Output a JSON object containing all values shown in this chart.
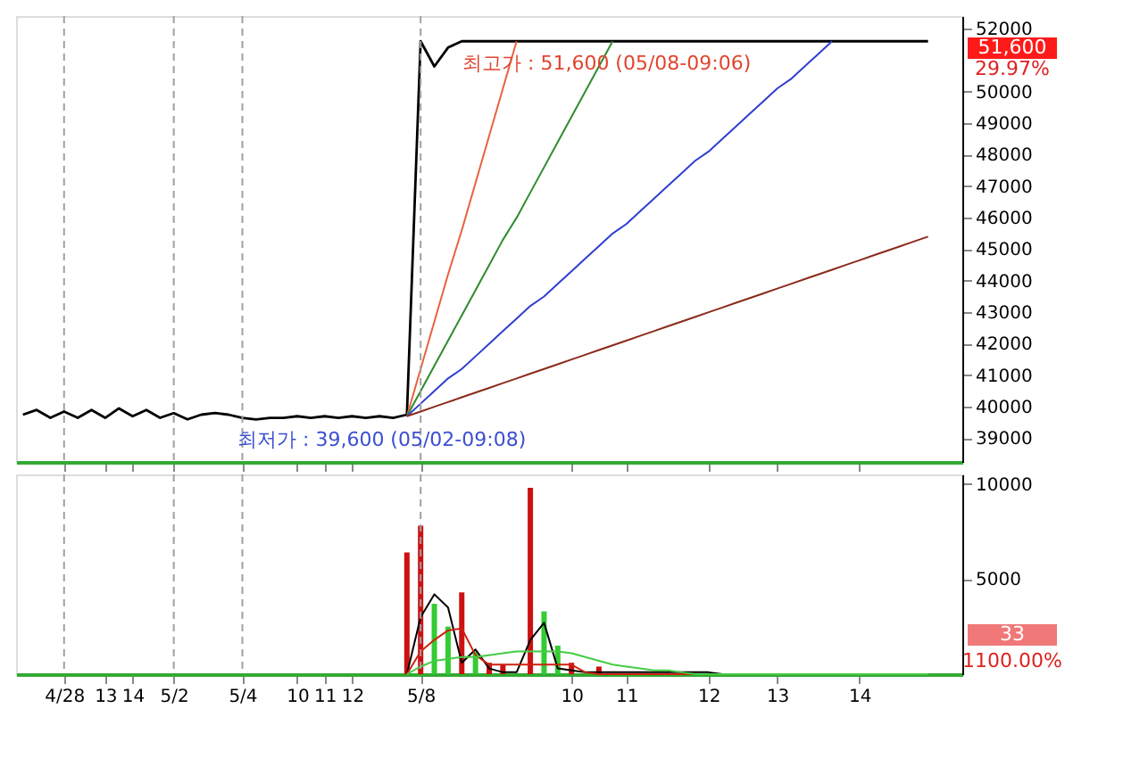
{
  "chart_data": [
    {
      "type": "line",
      "categories": [
        null,
        null,
        null,
        "4/28",
        null,
        null,
        "13",
        null,
        "14",
        null,
        null,
        "5/2",
        null,
        null,
        null,
        null,
        "5/4",
        null,
        null,
        null,
        "10",
        null,
        "11",
        null,
        "12",
        null,
        null,
        null,
        null,
        "5/8",
        null,
        null,
        null,
        null,
        null,
        null,
        null,
        null,
        null,
        null,
        "10",
        null,
        null,
        null,
        "11",
        null,
        null,
        null,
        null,
        null,
        "12",
        null,
        null,
        null,
        null,
        "13",
        null,
        null,
        null,
        null,
        null,
        "14",
        null,
        null,
        null,
        null,
        null,
        null,
        null
      ],
      "ylim": [
        38250,
        52400
      ],
      "yticks": [
        39000,
        40000,
        41000,
        42000,
        43000,
        44000,
        45000,
        46000,
        47000,
        48000,
        49000,
        50000,
        52000
      ],
      "tick_labels": "y",
      "grid": false,
      "marker": "none",
      "line_style": "solid",
      "series": [
        {
          "color": "#000000",
          "values": [
            39750,
            39900,
            39650,
            39850,
            39650,
            39900,
            39650,
            39950,
            39700,
            39900,
            39650,
            39800,
            39600,
            39750,
            39800,
            39750,
            39650,
            39600,
            39650,
            39650,
            39700,
            39650,
            39700,
            39650,
            39700,
            39650,
            39700,
            39650,
            39750,
            51600,
            50800,
            51400,
            51600,
            51600,
            51600,
            51600,
            51600,
            51600,
            51600,
            51600,
            51600,
            51600,
            51600,
            51600,
            51600,
            51600,
            51600,
            51600,
            51600,
            51600,
            51600,
            51600,
            51600,
            51600,
            51600,
            51600,
            51600,
            51600,
            51600,
            51600,
            51600,
            51600,
            51600,
            51600,
            51600,
            51600,
            51600,
            null,
            null
          ]
        },
        {
          "color": "#e8623c",
          "values": [
            null,
            null,
            null,
            null,
            null,
            null,
            null,
            null,
            null,
            null,
            null,
            null,
            null,
            null,
            null,
            null,
            null,
            null,
            null,
            null,
            null,
            null,
            null,
            null,
            null,
            null,
            null,
            null,
            39700,
            41200,
            42700,
            44200,
            45600,
            47100,
            48600,
            50100,
            51600,
            null,
            null,
            null,
            null,
            null,
            null,
            null,
            null,
            null,
            null,
            null,
            null,
            null,
            null,
            null,
            null,
            null,
            null,
            null,
            null,
            null,
            null,
            null,
            null,
            null,
            null,
            null,
            null,
            null,
            null,
            null,
            null
          ]
        },
        {
          "color": "#2e8b2e",
          "values": [
            null,
            null,
            null,
            null,
            null,
            null,
            null,
            null,
            null,
            null,
            null,
            null,
            null,
            null,
            null,
            null,
            null,
            null,
            null,
            null,
            null,
            null,
            null,
            null,
            null,
            null,
            null,
            null,
            39700,
            40500,
            41300,
            42100,
            42900,
            43700,
            44500,
            45300,
            46000,
            46800,
            47600,
            48400,
            49200,
            50000,
            50800,
            51600,
            null,
            null,
            null,
            null,
            null,
            null,
            null,
            null,
            null,
            null,
            null,
            null,
            null,
            null,
            null,
            null,
            null,
            null,
            null,
            null,
            null,
            null,
            null,
            null,
            null
          ]
        },
        {
          "color": "#2f3fd0",
          "values": [
            null,
            null,
            null,
            null,
            null,
            null,
            null,
            null,
            null,
            null,
            null,
            null,
            null,
            null,
            null,
            null,
            null,
            null,
            null,
            null,
            null,
            null,
            null,
            null,
            null,
            null,
            null,
            null,
            39700,
            40100,
            40500,
            40900,
            41200,
            41600,
            42000,
            42400,
            42800,
            43200,
            43500,
            43900,
            44300,
            44700,
            45100,
            45500,
            45800,
            46200,
            46600,
            47000,
            47400,
            47800,
            48100,
            48500,
            48900,
            49300,
            49700,
            50100,
            50400,
            50800,
            51200,
            51600,
            null,
            null,
            null,
            null,
            null,
            null,
            null,
            null,
            null
          ]
        },
        {
          "color": "#8b2a1a",
          "values": [
            null,
            null,
            null,
            null,
            null,
            null,
            null,
            null,
            null,
            null,
            null,
            null,
            null,
            null,
            null,
            null,
            null,
            null,
            null,
            null,
            null,
            null,
            null,
            null,
            null,
            null,
            null,
            null,
            39700,
            39850,
            40000,
            40150,
            40300,
            40450,
            40600,
            40750,
            40900,
            41050,
            41200,
            41350,
            41500,
            41650,
            41800,
            41950,
            42100,
            42250,
            42400,
            42550,
            42700,
            42850,
            43000,
            43150,
            43300,
            43450,
            43600,
            43750,
            43900,
            44050,
            44200,
            44350,
            44500,
            44650,
            44800,
            44950,
            45100,
            45250,
            45400,
            null,
            null
          ]
        }
      ],
      "ref_lines": [
        {
          "axis": "x",
          "value": "4/28",
          "color": "#a0a0a0",
          "line_style": "dashed"
        },
        {
          "axis": "x",
          "value": "5/2",
          "color": "#a0a0a0",
          "line_style": "dashed"
        },
        {
          "axis": "x",
          "value": "5/4",
          "color": "#a0a0a0",
          "line_style": "dashed"
        },
        {
          "axis": "x",
          "value": "5/8",
          "color": "#a0a0a0",
          "line_style": "dashed"
        }
      ],
      "annotations": [
        "최고가 : 51,600 (05/08-09:06)",
        "최저가 : 39,600 (05/02-09:08)",
        "51,600",
        "29.97%"
      ]
    },
    {
      "type": "bar",
      "categories": [
        null,
        null,
        null,
        "4/28",
        null,
        null,
        "13",
        null,
        "14",
        null,
        null,
        "5/2",
        null,
        null,
        null,
        null,
        "5/4",
        null,
        null,
        null,
        "10",
        null,
        "11",
        null,
        "12",
        null,
        null,
        null,
        null,
        "5/8",
        null,
        null,
        null,
        null,
        null,
        null,
        null,
        null,
        null,
        null,
        "10",
        null,
        null,
        null,
        "11",
        null,
        null,
        null,
        null,
        null,
        "12",
        null,
        null,
        null,
        null,
        "13",
        null,
        null,
        null,
        null,
        null,
        "14",
        null,
        null,
        null,
        null,
        null,
        null,
        null
      ],
      "ylim": [
        0,
        10500
      ],
      "yticks": [
        5000,
        10000
      ],
      "grid": false,
      "marker": "none",
      "line_style": "solid",
      "series": [
        {
          "type": "bar",
          "color": "#cc1111",
          "values": [
            null,
            null,
            null,
            null,
            null,
            null,
            null,
            null,
            null,
            null,
            null,
            null,
            null,
            null,
            null,
            null,
            null,
            null,
            null,
            null,
            null,
            null,
            null,
            null,
            null,
            null,
            null,
            null,
            6400,
            7800,
            null,
            null,
            4300,
            null,
            600,
            500,
            null,
            9800,
            null,
            null,
            600,
            null,
            400,
            null,
            null,
            null,
            null,
            null,
            null,
            null,
            null,
            null,
            null,
            null,
            null,
            null,
            null,
            null,
            null,
            null,
            null,
            null,
            null,
            null,
            null,
            null,
            null,
            null,
            null
          ]
        },
        {
          "type": "bar",
          "color": "#33cc33",
          "values": [
            null,
            null,
            null,
            null,
            null,
            null,
            null,
            null,
            null,
            null,
            null,
            null,
            null,
            null,
            null,
            null,
            null,
            null,
            null,
            null,
            null,
            null,
            null,
            null,
            null,
            null,
            null,
            null,
            null,
            null,
            3700,
            2500,
            null,
            1200,
            null,
            null,
            null,
            null,
            3300,
            1500,
            null,
            null,
            null,
            null,
            null,
            null,
            null,
            null,
            null,
            null,
            null,
            null,
            null,
            null,
            null,
            null,
            null,
            null,
            null,
            null,
            null,
            null,
            null,
            null,
            null,
            null,
            null,
            null,
            null
          ]
        },
        {
          "type": "line",
          "color": "#000000",
          "values": [
            null,
            null,
            null,
            null,
            null,
            null,
            null,
            null,
            null,
            null,
            null,
            null,
            null,
            null,
            null,
            null,
            null,
            null,
            null,
            null,
            null,
            null,
            null,
            null,
            null,
            null,
            null,
            null,
            0,
            3000,
            4200,
            3500,
            600,
            1300,
            300,
            100,
            100,
            1800,
            2700,
            300,
            200,
            100,
            100,
            100,
            100,
            100,
            100,
            100,
            100,
            100,
            100,
            0,
            0,
            0,
            0,
            0,
            0,
            0,
            0,
            0,
            0,
            0,
            0,
            0,
            null,
            null,
            null,
            null,
            null
          ]
        },
        {
          "type": "line",
          "color": "#cc2211",
          "values": [
            null,
            null,
            null,
            null,
            null,
            null,
            null,
            null,
            null,
            null,
            null,
            null,
            null,
            null,
            null,
            null,
            null,
            null,
            null,
            null,
            null,
            null,
            null,
            null,
            null,
            null,
            null,
            null,
            0,
            1200,
            1800,
            2300,
            2400,
            1000,
            500,
            500,
            500,
            500,
            500,
            500,
            500,
            100,
            0,
            0,
            0,
            0,
            0,
            0,
            0,
            0,
            0,
            null,
            null,
            null,
            null,
            null,
            null,
            null,
            null,
            null,
            null,
            null,
            null,
            null,
            null,
            null,
            null,
            null,
            null
          ]
        },
        {
          "type": "line",
          "color": "#44cc44",
          "values": [
            null,
            null,
            null,
            null,
            null,
            null,
            null,
            null,
            null,
            null,
            null,
            null,
            null,
            null,
            null,
            null,
            null,
            null,
            null,
            null,
            null,
            null,
            null,
            null,
            null,
            null,
            null,
            null,
            0,
            400,
            700,
            800,
            900,
            900,
            1000,
            1100,
            1200,
            1200,
            1200,
            1200,
            1100,
            900,
            700,
            500,
            400,
            300,
            200,
            200,
            100,
            0,
            0,
            0,
            0,
            0,
            0,
            0,
            0,
            0,
            0,
            0,
            0,
            0,
            0,
            0,
            0,
            0,
            0,
            null,
            null
          ]
        }
      ],
      "ref_lines": [
        {
          "axis": "x",
          "value": "4/28",
          "color": "#a0a0a0",
          "line_style": "dashed"
        },
        {
          "axis": "x",
          "value": "5/2",
          "color": "#a0a0a0",
          "line_style": "dashed"
        },
        {
          "axis": "x",
          "value": "5/4",
          "color": "#a0a0a0",
          "line_style": "dashed"
        },
        {
          "axis": "x",
          "value": "5/8",
          "color": "#a0a0a0",
          "line_style": "dashed"
        }
      ],
      "annotations": [
        "33",
        "1100.00%"
      ]
    }
  ]
}
